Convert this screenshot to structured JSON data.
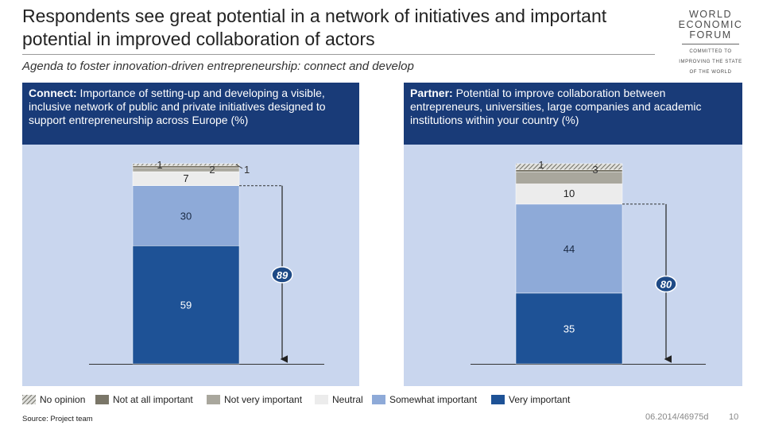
{
  "header": {
    "title": "Respondents see great potential in a network of initiatives and important potential in improved collaboration of actors",
    "subtitle": "Agenda to foster innovation-driven entrepreneurship: connect and develop"
  },
  "logo": {
    "name_lines": [
      "WORLD",
      "ECONOMIC",
      "FORUM"
    ],
    "tagline_lines": [
      "COMMITTED TO",
      "IMPROVING THE STATE",
      "OF THE WORLD"
    ]
  },
  "legend": {
    "items": [
      {
        "key": "no_opinion",
        "label": "No opinion",
        "color": "#6e6e66",
        "pattern": "hatch"
      },
      {
        "key": "not_at_all",
        "label": "Not at all important",
        "color": "#7a7668"
      },
      {
        "key": "not_very",
        "label": "Not very important",
        "color": "#a9a79d"
      },
      {
        "key": "neutral",
        "label": "Neutral",
        "color": "#ececec"
      },
      {
        "key": "somewhat",
        "label": "Somewhat important",
        "color": "#8eaad8"
      },
      {
        "key": "very",
        "label": "Very important",
        "color": "#1e5296"
      }
    ]
  },
  "panels": [
    {
      "heading_bold": "Connect:",
      "heading_text": " Importance of setting-up and developing a visible, inclusive network of public and private initiatives designed to support entrepreneurship across Europe (%)"
    },
    {
      "heading_bold": "Partner:",
      "heading_text": " Potential to improve collaboration between entrepreneurs, universities, large companies and academic institutions within your country (%)"
    }
  ],
  "chart_data": [
    {
      "type": "bar",
      "stacked": true,
      "ylim": [
        0,
        100
      ],
      "series": [
        {
          "name": "Very important",
          "values": [
            59
          ]
        },
        {
          "name": "Somewhat important",
          "values": [
            30
          ]
        },
        {
          "name": "Neutral",
          "values": [
            7
          ]
        },
        {
          "name": "Not very important",
          "values": [
            2
          ]
        },
        {
          "name": "Not at all important",
          "values": [
            1
          ]
        },
        {
          "name": "No opinion",
          "values": [
            1
          ]
        }
      ],
      "annotation": {
        "label": "89",
        "covers": [
          "Very important",
          "Somewhat important"
        ]
      }
    },
    {
      "type": "bar",
      "stacked": true,
      "ylim": [
        0,
        100
      ],
      "series": [
        {
          "name": "Very important",
          "values": [
            35
          ]
        },
        {
          "name": "Somewhat important",
          "values": [
            44
          ]
        },
        {
          "name": "Neutral",
          "values": [
            10
          ]
        },
        {
          "name": "Not very important",
          "values": [
            6
          ]
        },
        {
          "name": "Not at all important",
          "values": [
            1
          ]
        },
        {
          "name": "No opinion",
          "values": [
            3
          ]
        }
      ],
      "annotation": {
        "label": "80",
        "covers": [
          "Very important",
          "Somewhat important"
        ]
      }
    }
  ],
  "footer": {
    "source": "Source: Project team",
    "code": "06.2014/46975d",
    "page": "10"
  }
}
